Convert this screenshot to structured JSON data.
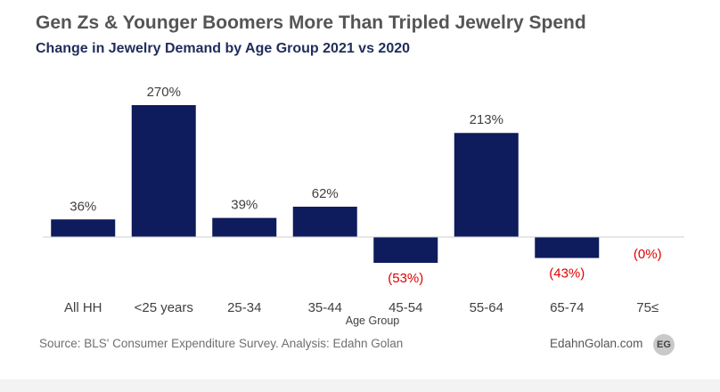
{
  "header": {
    "title": "Gen Zs & Younger Boomers More Than Tripled Jewelry Spend",
    "subtitle": "Change in Jewelry Demand by Age Group 2021 vs 2020"
  },
  "chart_data": {
    "type": "bar",
    "categories": [
      "All HH",
      "<25 years",
      "25-34",
      "35-44",
      "45-54",
      "55-64",
      "65-74",
      "75≤"
    ],
    "values": [
      36,
      270,
      39,
      62,
      -53,
      213,
      -43,
      0
    ],
    "data_labels": [
      "36%",
      "270%",
      "39%",
      "62%",
      "(53%)",
      "213%",
      "(43%)",
      "(0%)"
    ],
    "xlabel": "Age Group",
    "ylabel": "",
    "ylim": [
      -60,
      280
    ],
    "grid": false,
    "legend": "none",
    "colors": {
      "bar": "#0e1b5c",
      "positive_label": "#404040",
      "negative_label": "#e00000",
      "baseline": "#cfcfcf"
    }
  },
  "footer": {
    "source": "Source: BLS' Consumer Expenditure Survey. Analysis: Edahn Golan",
    "site": "EdahnGolan.com",
    "logo": "EG"
  }
}
